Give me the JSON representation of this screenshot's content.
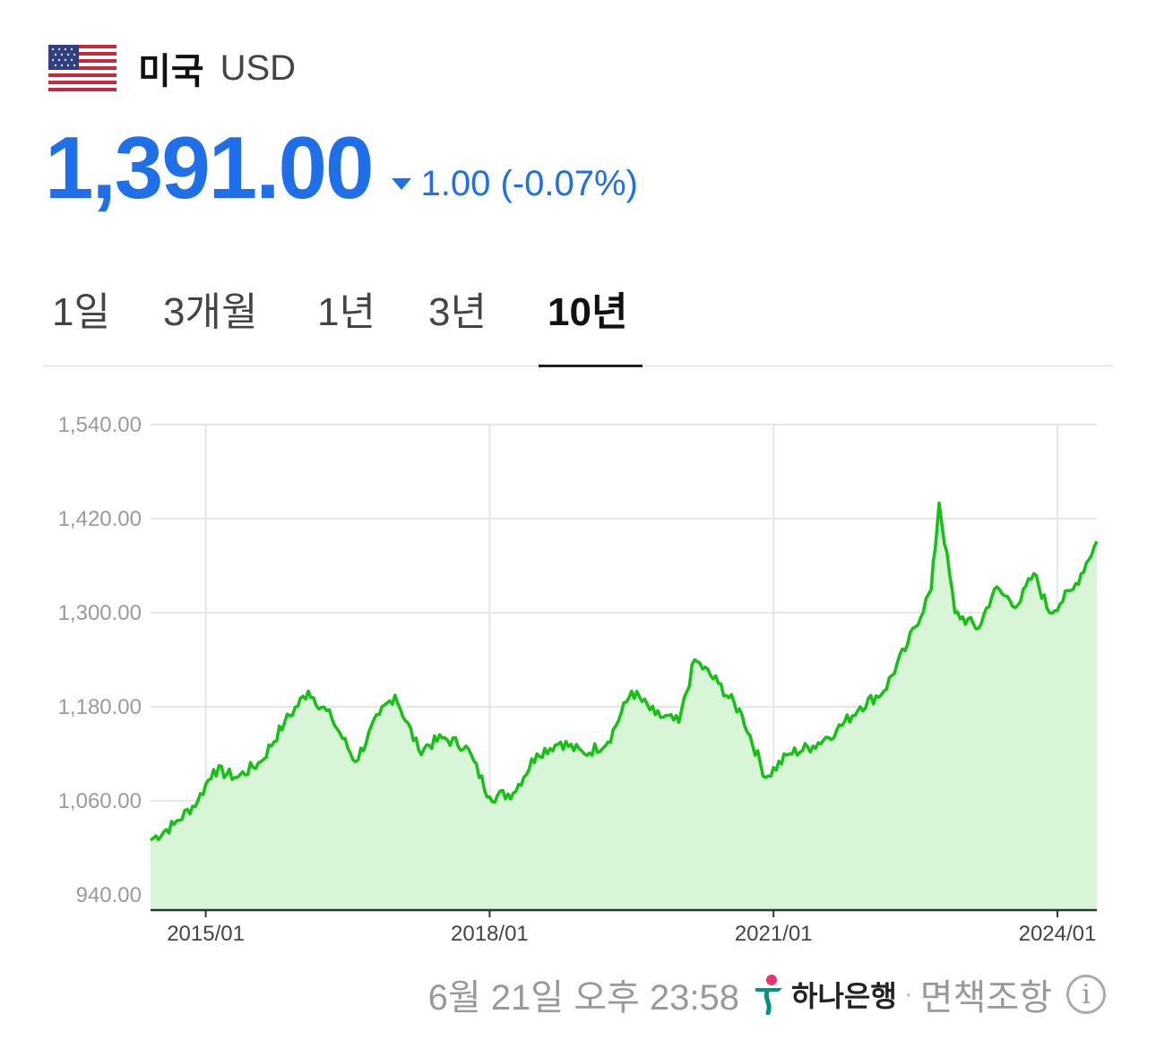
{
  "header": {
    "country": "미국",
    "currency": "USD",
    "flag_icon": "us-flag-icon"
  },
  "quote": {
    "price": "1,391.00",
    "change": "1.00 (-0.07%)",
    "direction": "down",
    "color": "#1f6fe8"
  },
  "tabs": [
    {
      "label": "1일",
      "active": false
    },
    {
      "label": "3개월",
      "active": false
    },
    {
      "label": "1년",
      "active": false
    },
    {
      "label": "3년",
      "active": false
    },
    {
      "label": "10년",
      "active": true
    }
  ],
  "chart_data": {
    "type": "area",
    "y_ticks": [
      "1,540.00",
      "1,420.00",
      "1,300.00",
      "1,180.00",
      "1,060.00",
      "940.00"
    ],
    "x_ticks": [
      "2015/01",
      "2018/01",
      "2021/01",
      "2024/01"
    ],
    "ylim": [
      940,
      1540
    ],
    "grid": true,
    "line_color": "#14c114",
    "fill_color": "#d8f5d8",
    "series": [
      {
        "x": [
          "2014/06",
          "2014/09",
          "2014/12",
          "2015/02",
          "2015/05",
          "2015/08",
          "2015/11",
          "2016/02",
          "2016/05",
          "2016/08",
          "2016/11",
          "2017/01",
          "2017/04",
          "2017/07",
          "2017/10",
          "2018/01",
          "2018/04",
          "2018/07",
          "2018/10",
          "2019/01",
          "2019/04",
          "2019/07",
          "2019/10",
          "2020/01",
          "2020/03",
          "2020/06",
          "2020/09",
          "2020/12",
          "2021/03",
          "2021/06",
          "2021/09",
          "2021/12",
          "2022/03",
          "2022/06",
          "2022/09",
          "2022/10",
          "2022/12",
          "2023/03",
          "2023/05",
          "2023/08",
          "2023/10",
          "2023/12",
          "2024/03",
          "2024/06"
        ],
        "values": [
          1010,
          1030,
          1060,
          1100,
          1090,
          1110,
          1160,
          1200,
          1165,
          1110,
          1170,
          1195,
          1125,
          1140,
          1130,
          1065,
          1070,
          1120,
          1135,
          1120,
          1135,
          1200,
          1170,
          1160,
          1240,
          1210,
          1170,
          1090,
          1120,
          1130,
          1150,
          1180,
          1200,
          1260,
          1330,
          1440,
          1300,
          1280,
          1330,
          1310,
          1350,
          1300,
          1330,
          1391
        ]
      }
    ]
  },
  "footer": {
    "timestamp": "6월 21일 오후 23:58",
    "bank": "하나은행",
    "separator": "·",
    "disclaimer": "면책조항",
    "info_glyph": "i"
  }
}
